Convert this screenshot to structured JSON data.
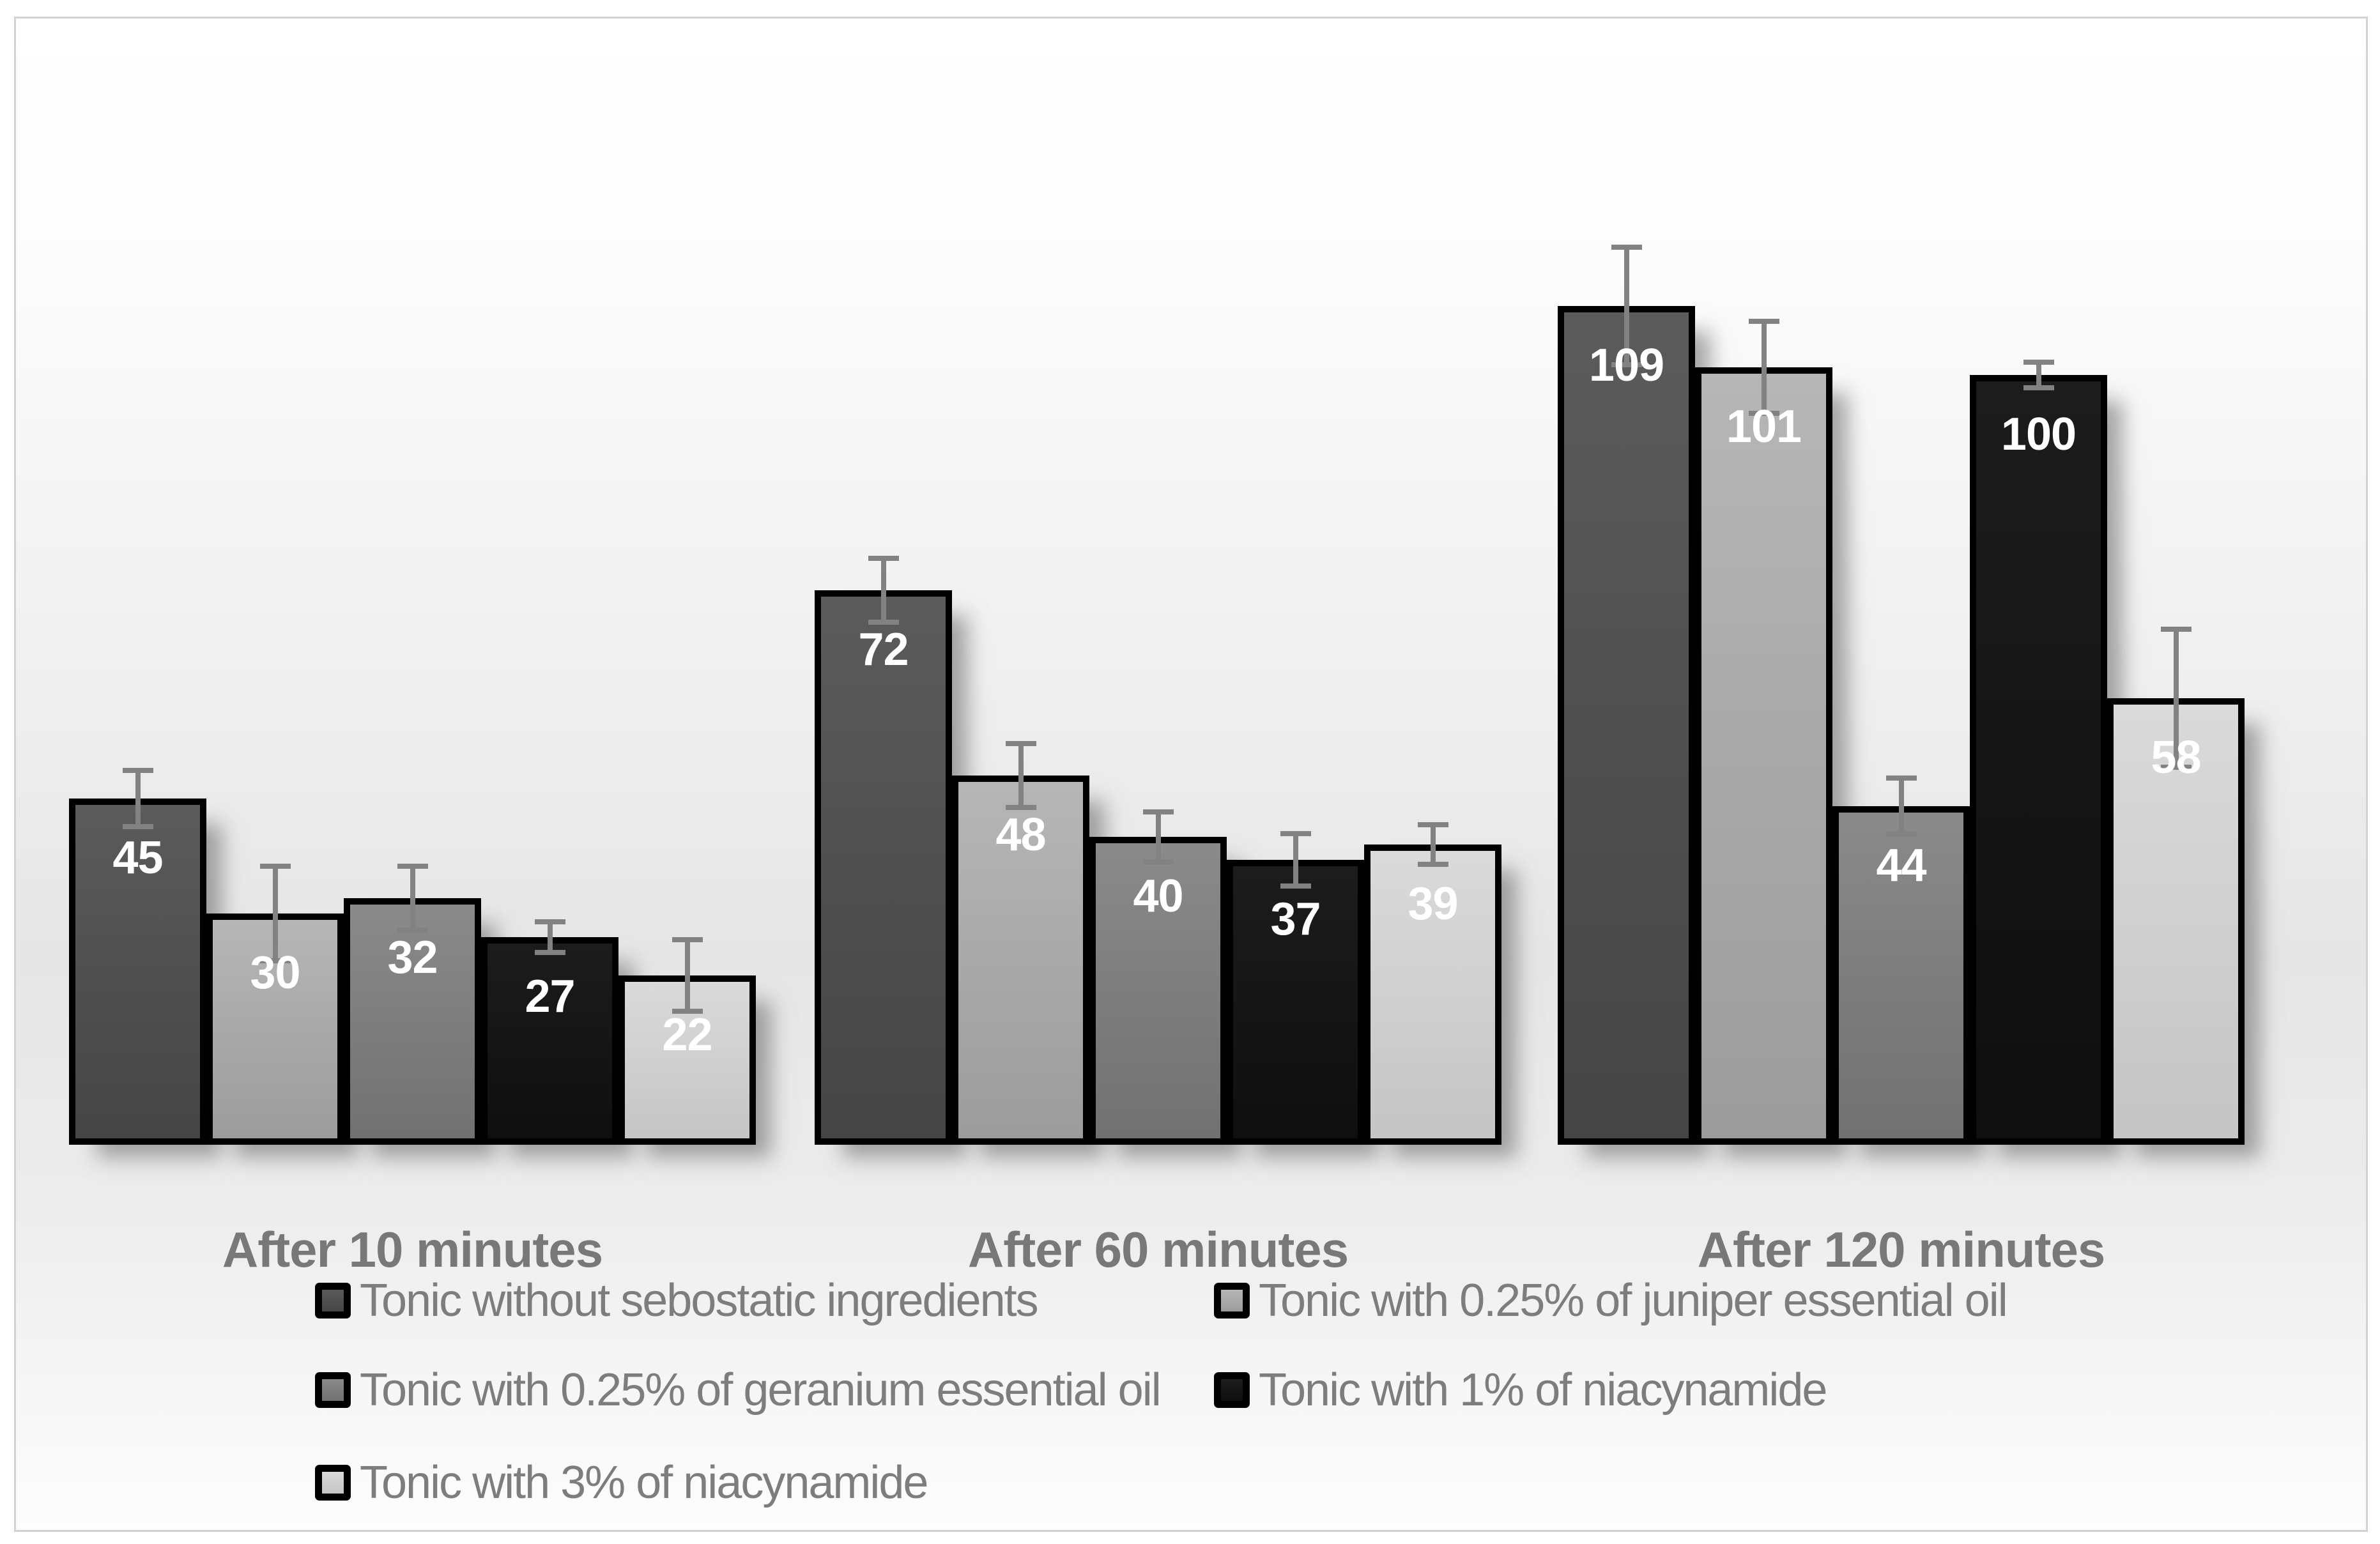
{
  "chart_data": {
    "type": "bar",
    "title": "",
    "xlabel": "",
    "ylabel": "",
    "ylim": [
      0,
      120
    ],
    "grid": false,
    "value_labels_shown": true,
    "error_bars_shown": true,
    "legend_position": "bottom",
    "categories": [
      "After 10 minutes",
      "After 60 minutes",
      "After 120 minutes"
    ],
    "series": [
      {
        "name": "Tonic without sebostatic ingredients",
        "values": [
          45,
          72,
          109
        ],
        "errors": [
          4,
          4.5,
          8
        ],
        "color_top": "#5b5b5b",
        "color_bottom": "#454545"
      },
      {
        "name": "Tonic with 0.25% of juniper essential oil",
        "values": [
          30,
          48,
          101
        ],
        "errors": [
          6.5,
          4.5,
          6.3
        ],
        "color_top": "#b6b6b6",
        "color_bottom": "#9c9c9c"
      },
      {
        "name": "Tonic with 0.25% of geranium essential oil",
        "values": [
          32,
          40,
          44
        ],
        "errors": [
          4.5,
          3.6,
          4
        ],
        "color_top": "#8a8a8a",
        "color_bottom": "#717171"
      },
      {
        "name": "Tonic with 1% of niacynamide",
        "values": [
          27,
          37,
          100
        ],
        "errors": [
          2.3,
          3.7,
          2
        ],
        "color_top": "#1c1c1c",
        "color_bottom": "#0f0f0f"
      },
      {
        "name": "Tonic with 3% of niacynamide",
        "values": [
          22,
          39,
          58
        ],
        "errors": [
          5,
          2.9,
          9.3
        ],
        "color_top": "#dadada",
        "color_bottom": "#c5c5c5"
      }
    ],
    "style": {
      "bar_border_color": "#000000",
      "error_bar_color": "#828282",
      "value_label_color": "#ffffff",
      "category_label_color": "#787878",
      "legend_text_color": "#7d7d7d",
      "frame_border_color": "#d2d2d2"
    }
  }
}
